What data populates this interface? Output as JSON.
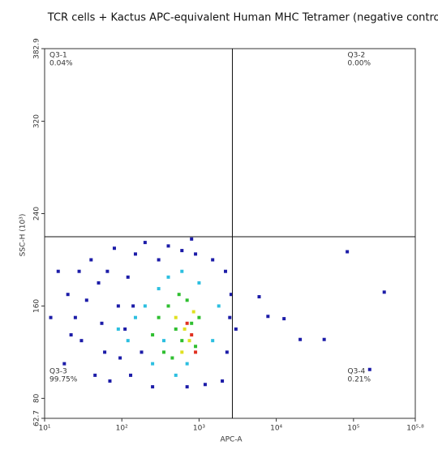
{
  "chart_data": {
    "type": "scatter",
    "title": "TCR cells + Kactus APC-equivalent Human MHC Tetramer (negative control)",
    "x_label": "APC-A",
    "y_label": "SSC-H (10³)",
    "xscale": "log",
    "xlim": [
      10,
      630957
    ],
    "ylim": [
      62.7,
      382.9
    ],
    "xticks": [
      {
        "value": 10,
        "label": "10¹"
      },
      {
        "value": 100,
        "label": "10²"
      },
      {
        "value": 1000,
        "label": "10³"
      },
      {
        "value": 10000,
        "label": "10⁴"
      },
      {
        "value": 100000,
        "label": "10⁵"
      },
      {
        "value": 630957,
        "label": "10⁵·⁸"
      }
    ],
    "yticks": [
      62.7,
      80,
      160,
      240,
      320,
      382.9
    ],
    "gate_x": 2700,
    "gate_y": 220,
    "quadrants": [
      {
        "name": "Q3-1",
        "percent": "0.04%",
        "corner": "top-left"
      },
      {
        "name": "Q3-2",
        "percent": "0.00%",
        "corner": "top-right"
      },
      {
        "name": "Q3-3",
        "percent": "99.75%",
        "corner": "bottom-left"
      },
      {
        "name": "Q3-4",
        "percent": "0.21%",
        "corner": "bottom-right"
      }
    ],
    "series": [
      {
        "color": "#1c1ca8",
        "x": [
          15,
          20,
          25,
          30,
          18,
          40,
          50,
          60,
          70,
          80,
          90,
          110,
          130,
          150,
          200,
          250,
          300,
          400,
          600,
          900,
          1500,
          2200,
          2500,
          2300,
          2000,
          1200,
          700,
          45,
          35,
          55,
          120,
          180,
          22,
          12,
          800,
          2600,
          65,
          95,
          140,
          28,
          3000,
          6000,
          7800,
          12600,
          20400,
          41700,
          83000,
          162000,
          250000
        ],
        "values": [
          190,
          170,
          150,
          130,
          110,
          200,
          180,
          120,
          95,
          210,
          160,
          140,
          100,
          205,
          215,
          90,
          200,
          212,
          208,
          205,
          200,
          190,
          150,
          120,
          95,
          92,
          90,
          100,
          165,
          145,
          185,
          120,
          135,
          150,
          218,
          170,
          190,
          115,
          160,
          190,
          140,
          168,
          151,
          149,
          131,
          131,
          207,
          105,
          172
        ]
      },
      {
        "color": "#2cbfe0",
        "x": [
          200,
          300,
          150,
          400,
          250,
          1000,
          1500,
          700,
          350,
          120,
          600,
          1800,
          500,
          90
        ],
        "values": [
          160,
          175,
          150,
          185,
          110,
          180,
          130,
          110,
          130,
          130,
          190,
          160,
          100,
          140
        ]
      },
      {
        "color": "#2fbf30",
        "x": [
          300,
          400,
          500,
          600,
          700,
          800,
          350,
          450,
          900,
          1000,
          550,
          250
        ],
        "values": [
          150,
          160,
          140,
          130,
          165,
          145,
          120,
          115,
          125,
          150,
          170,
          135
        ]
      },
      {
        "color": "#e0e020",
        "x": [
          500,
          650,
          750,
          600,
          850
        ],
        "values": [
          150,
          140,
          130,
          120,
          155
        ]
      },
      {
        "color": "#e03020",
        "x": [
          700,
          800,
          900
        ],
        "values": [
          145,
          135,
          120
        ]
      }
    ]
  }
}
